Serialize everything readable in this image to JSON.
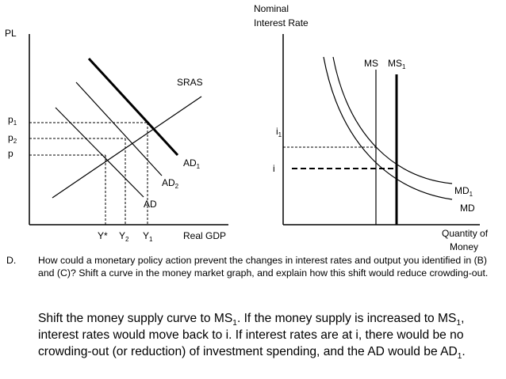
{
  "left_graph": {
    "y_axis_label": "PL",
    "x_axis_label": "Real GDP",
    "curve_labels": {
      "sras": "SRAS",
      "ad1": "AD",
      "ad1_sub": "1",
      "ad2": "AD",
      "ad2_sub": "2",
      "ad": "AD"
    },
    "price_labels": {
      "p1": "p",
      "p1_sub": "1",
      "p2": "p",
      "p2_sub": "2",
      "p": "p"
    },
    "output_labels": {
      "ystar": "Y*",
      "y2": "Y",
      "y2_sub": "2",
      "y1": "Y",
      "y1_sub": "1"
    }
  },
  "right_graph": {
    "y_axis_label_line1": "Nominal",
    "y_axis_label_line2": "Interest Rate",
    "x_axis_label_line1": "Quantity of",
    "x_axis_label_line2": "Money",
    "curve_labels": {
      "ms": "MS",
      "ms1": "MS",
      "ms1_sub": "1",
      "md1": "MD",
      "md1_sub": "1",
      "md": "MD"
    },
    "rate_labels": {
      "i1": "i",
      "i1_sub": "1",
      "i": "i"
    }
  },
  "question": {
    "letter": "D.",
    "text": "How could a monetary policy action prevent the changes in interest rates and output you identified in (B) and (C)? Shift a curve in the money market graph, and explain how this shift would reduce crowding-out."
  },
  "answer": {
    "s1a": "Shift the money supply curve to MS",
    "s1b": "1",
    "s1c": ".  If the money supply is increased to MS",
    "s1d": "1",
    "s1e": ", interest rates would move back to i.  If interest rates are at i, there would be no crowding-out (or reduction) of investment spending, and the AD would be AD",
    "s1f": "1",
    "s1g": "."
  }
}
